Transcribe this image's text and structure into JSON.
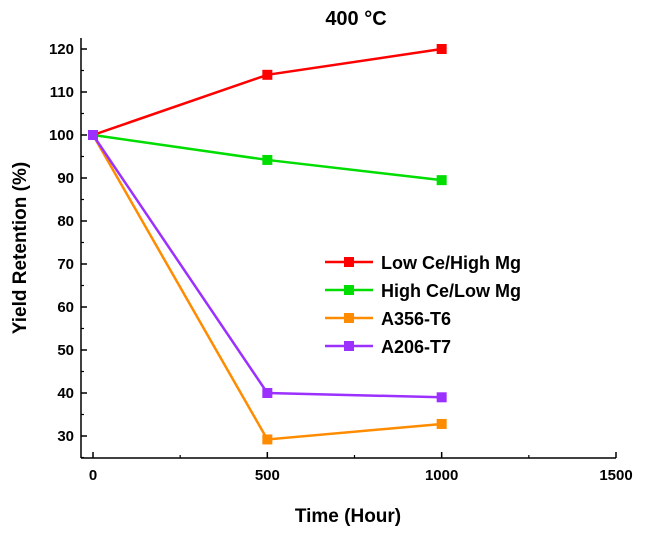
{
  "chart_data": {
    "type": "line",
    "title": "400 °C",
    "xlabel": "Time (Hour)",
    "ylabel": "Yield Retention (%)",
    "xlim": [
      -25,
      1500
    ],
    "ylim": [
      20,
      125
    ],
    "x_ticks": [
      "0",
      "500",
      "1000",
      "1500"
    ],
    "y_ticks": [
      "30",
      "40",
      "50",
      "60",
      "70",
      "80",
      "90",
      "100",
      "110",
      "120"
    ],
    "legend_placement": "center-right",
    "grid": false,
    "x": [
      0,
      500,
      1000
    ],
    "series": [
      {
        "name": "Low Ce/High Mg",
        "color": "#ff0000",
        "values": [
          100,
          114,
          120
        ]
      },
      {
        "name": "High Ce/Low Mg",
        "color": "#00dd00",
        "values": [
          100,
          94.2,
          89.5
        ]
      },
      {
        "name": "A356-T6",
        "color": "#ff8c00",
        "values": [
          100,
          29.2,
          32.8
        ]
      },
      {
        "name": "A206-T7",
        "color": "#9b30ff",
        "values": [
          100,
          40,
          39
        ]
      }
    ]
  }
}
